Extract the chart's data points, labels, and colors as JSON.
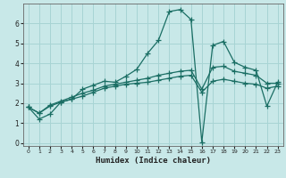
{
  "xlabel": "Humidex (Indice chaleur)",
  "xlim": [
    -0.5,
    23.5
  ],
  "ylim": [
    -0.15,
    7.0
  ],
  "yticks": [
    0,
    1,
    2,
    3,
    4,
    5,
    6
  ],
  "xticks": [
    0,
    1,
    2,
    3,
    4,
    5,
    6,
    7,
    8,
    9,
    10,
    11,
    12,
    13,
    14,
    15,
    16,
    17,
    18,
    19,
    20,
    21,
    22,
    23
  ],
  "bg_color": "#c8e8e8",
  "line_color": "#1a6e64",
  "grid_color": "#a8d4d4",
  "line1_y": [
    1.8,
    1.2,
    1.45,
    2.05,
    2.2,
    2.7,
    2.9,
    3.1,
    3.05,
    3.35,
    3.7,
    4.5,
    5.15,
    6.6,
    6.7,
    6.2,
    0.05,
    4.9,
    5.1,
    4.05,
    3.8,
    3.65,
    1.85,
    3.05
  ],
  "line2_y": [
    1.8,
    1.5,
    1.9,
    2.1,
    2.3,
    2.5,
    2.65,
    2.85,
    2.95,
    3.05,
    3.15,
    3.25,
    3.4,
    3.5,
    3.6,
    3.65,
    2.7,
    3.8,
    3.85,
    3.6,
    3.5,
    3.4,
    3.0,
    3.0
  ],
  "line3_y": [
    1.8,
    1.5,
    1.85,
    2.05,
    2.2,
    2.35,
    2.55,
    2.75,
    2.85,
    2.95,
    3.0,
    3.05,
    3.15,
    3.25,
    3.35,
    3.4,
    2.55,
    3.1,
    3.2,
    3.1,
    3.0,
    2.95,
    2.75,
    2.85
  ]
}
